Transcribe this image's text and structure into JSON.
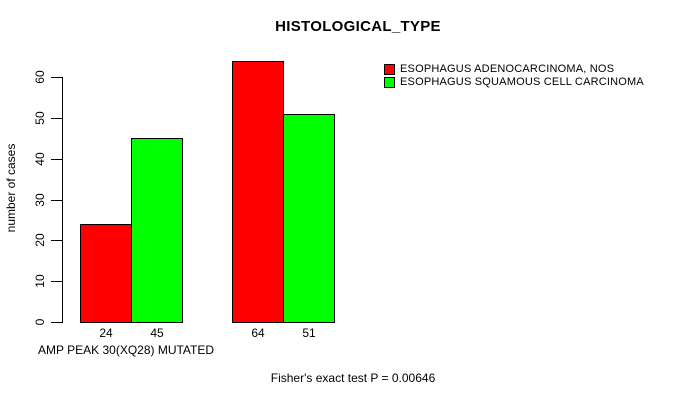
{
  "chart_data": {
    "type": "bar",
    "title": "HISTOLOGICAL_TYPE",
    "ylabel": "number of cases",
    "xlabel": "AMP PEAK 30(XQ28) MUTATED",
    "footnote": "Fisher's exact test P = 0.00646",
    "categories": [
      "",
      ""
    ],
    "series": [
      {
        "name": "ESOPHAGUS ADENOCARCINOMA, NOS",
        "color": "#FF0000",
        "values": [
          24,
          64
        ]
      },
      {
        "name": "ESOPHAGUS SQUAMOUS CELL CARCINOMA",
        "color": "#00FF00",
        "values": [
          45,
          51
        ]
      }
    ],
    "bar_value_labels": [
      [
        24,
        64
      ],
      [
        45,
        51
      ]
    ],
    "ylim": [
      0,
      60
    ],
    "yticks": [
      0,
      10,
      20,
      30,
      40,
      50,
      60
    ],
    "grid": false,
    "legend_position": "top-right",
    "background_color": "#FFFFFF",
    "bar_border_color": "#000000",
    "text_color": "#000000"
  }
}
